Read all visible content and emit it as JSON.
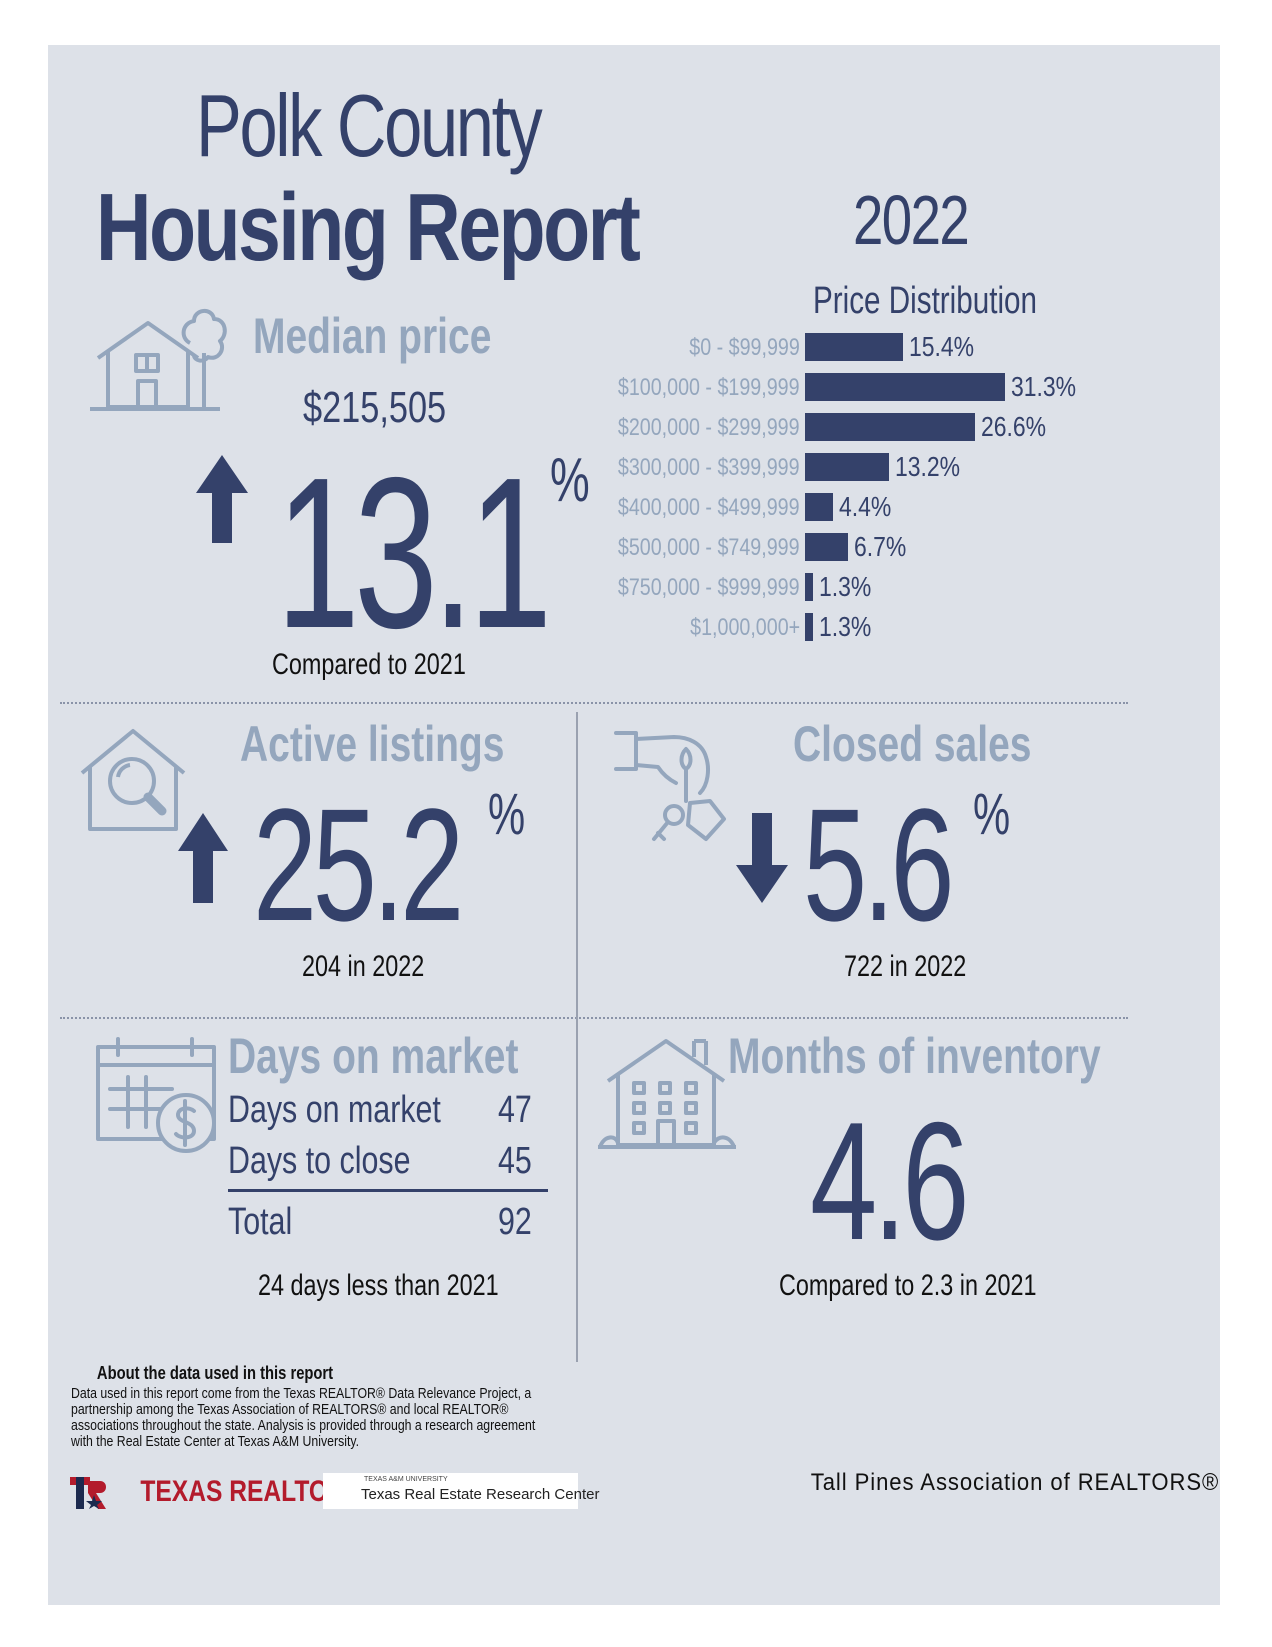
{
  "header": {
    "title_line1": "Polk County",
    "title_line2": "Housing Report",
    "year": "2022"
  },
  "median": {
    "label": "Median price",
    "value": "$215,505",
    "change": "13.1",
    "percent_sign": "%",
    "direction": "up",
    "note": "Compared to 2021"
  },
  "distribution": {
    "title": "Price Distribution"
  },
  "chart_data": {
    "type": "bar",
    "title": "Price Distribution",
    "orientation": "horizontal",
    "categories": [
      "$0 - $99,999",
      "$100,000 - $199,999",
      "$200,000 - $299,999",
      "$300,000 - $399,999",
      "$400,000 - $499,999",
      "$500,000 - $749,999",
      "$750,000 - $999,999",
      "$1,000,000+"
    ],
    "values": [
      15.4,
      31.3,
      26.6,
      13.2,
      4.4,
      6.7,
      1.3,
      1.3
    ],
    "value_labels": [
      "15.4%",
      "31.3%",
      "26.6%",
      "13.2%",
      "4.4%",
      "6.7%",
      "1.3%",
      "1.3%"
    ],
    "bar_color": "#34416a"
  },
  "active_listings": {
    "label": "Active listings",
    "change": "25.2",
    "percent_sign": "%",
    "direction": "up",
    "note": "204 in 2022"
  },
  "closed_sales": {
    "label": "Closed sales",
    "change": "5.6",
    "percent_sign": "%",
    "direction": "down",
    "note": "722 in 2022"
  },
  "days_on_market": {
    "label": "Days on market",
    "rows": [
      {
        "label": "Days on market",
        "value": "47"
      },
      {
        "label": "Days to close",
        "value": "45"
      }
    ],
    "total_label": "Total",
    "total_value": "92",
    "note": "24 days less than 2021"
  },
  "inventory": {
    "label": "Months of inventory",
    "value": "4.6",
    "note": "Compared to 2.3 in 2021"
  },
  "footer": {
    "about_title": "About the data used in this report",
    "about_text": "Data used in this report come from the Texas REALTOR® Data Relevance Project, a partnership among the Texas Association of REALTORS® and local REALTOR® associations throughout the state. Analysis is provided through a research agreement with the Real Estate Center at Texas A&M University.",
    "texas_realtors": "TEXAS REALTORS",
    "tamu_small": "TEXAS A&M UNIVERSITY",
    "tamu_name": "Texas Real Estate Research Center",
    "association": "Tall Pines Association of REALTORS®"
  },
  "colors": {
    "navy": "#34416a",
    "steel": "#94a6bd",
    "background": "#dde1e8",
    "red": "#b31b2c"
  }
}
